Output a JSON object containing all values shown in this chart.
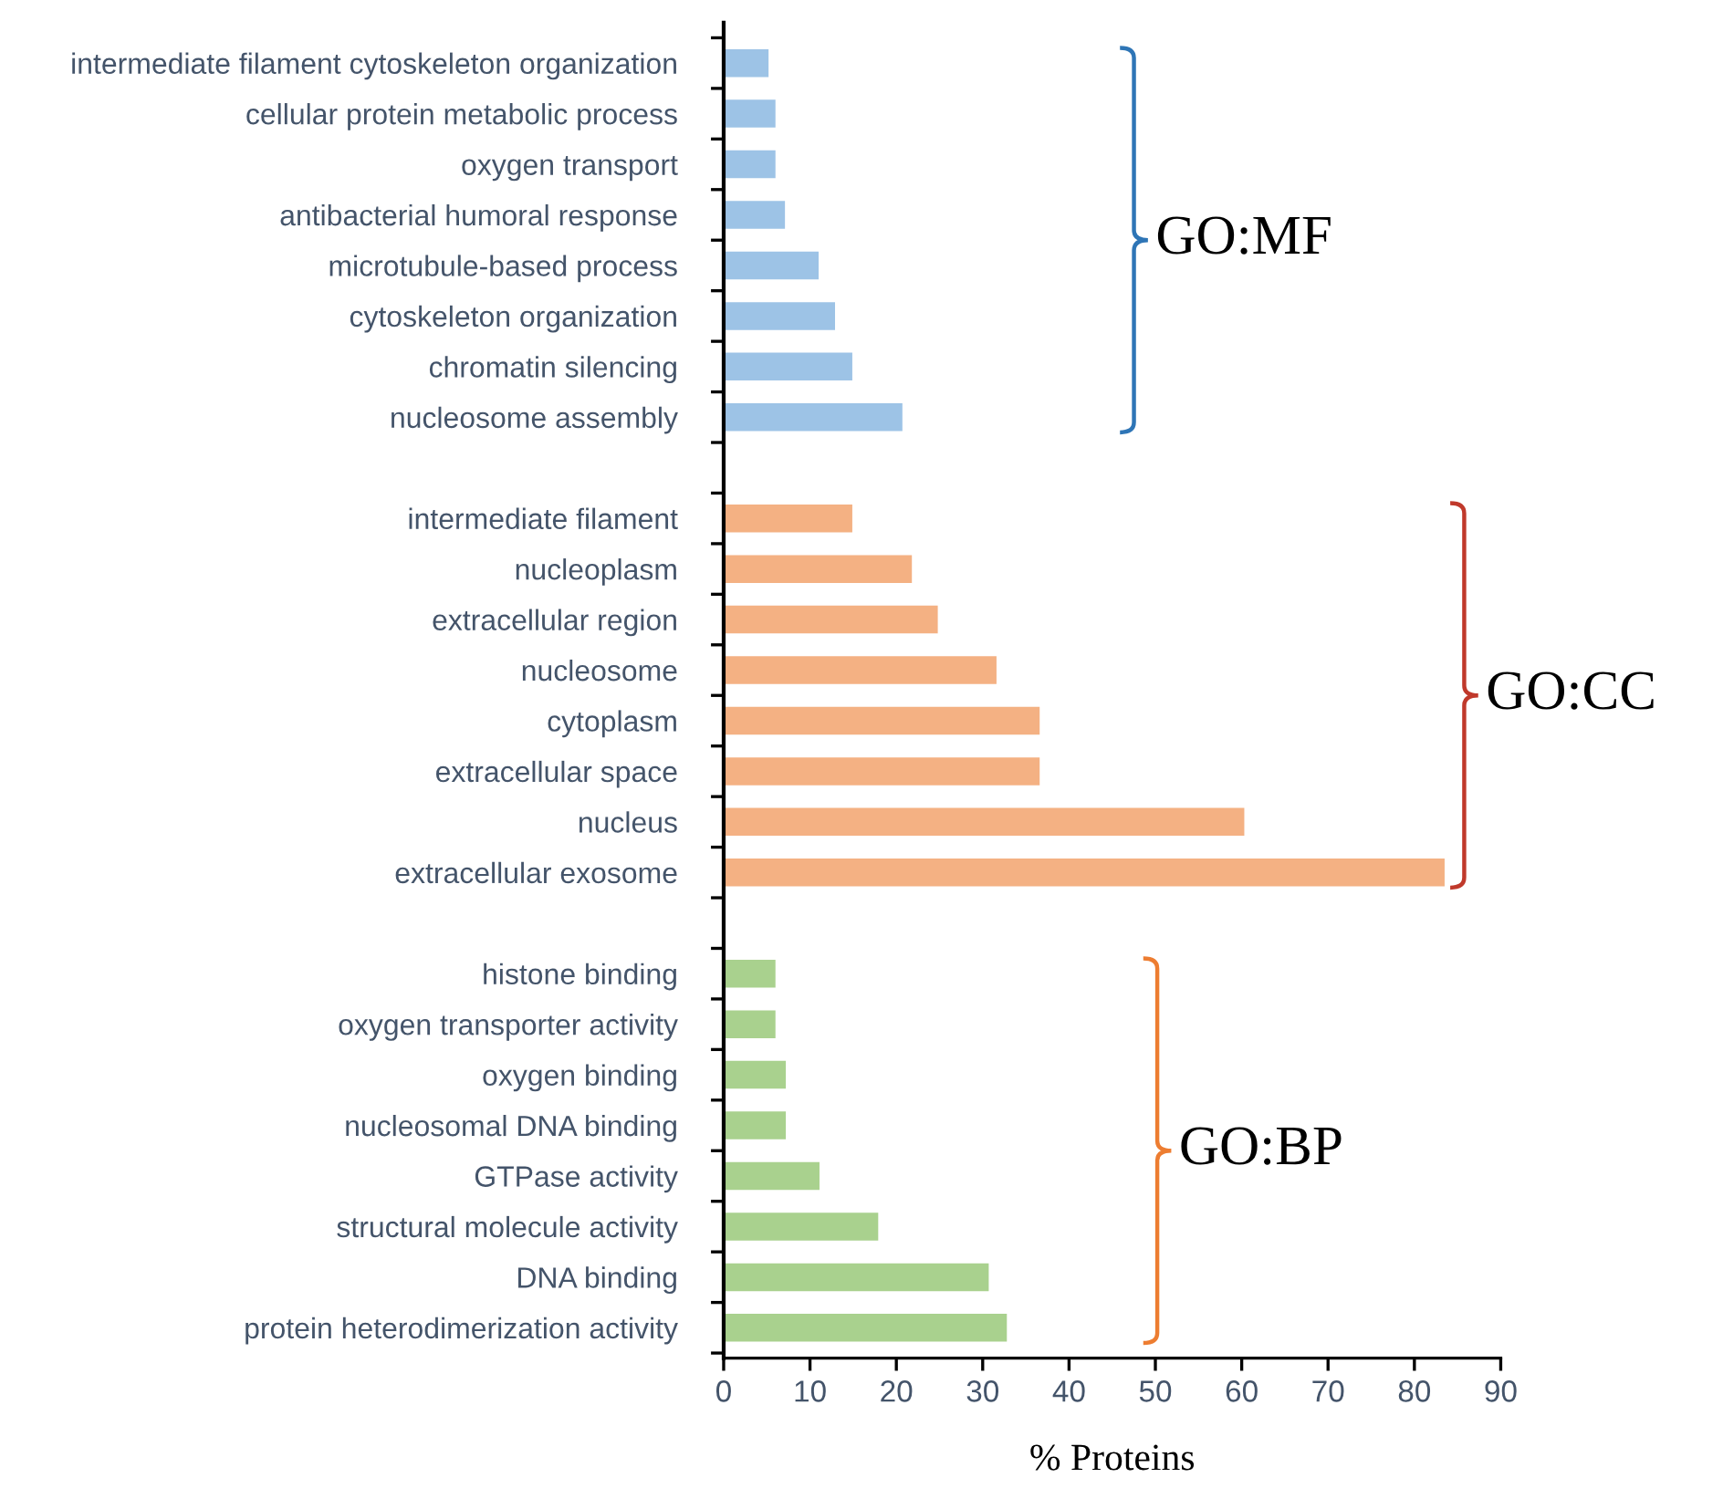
{
  "chart_data": {
    "type": "bar",
    "orientation": "horizontal",
    "xlabel": "% Proteins",
    "categories": [
      "intermediate filament cytoskeleton organization",
      "cellular protein metabolic process",
      "oxygen transport",
      "antibacterial humoral response",
      "microtubule-based process",
      "cytoskeleton organization",
      "chromatin silencing",
      "nucleosome assembly",
      null,
      "intermediate filament",
      "nucleoplasm",
      "extracellular region",
      "nucleosome",
      "cytoplasm",
      "extracellular space",
      "nucleus",
      "extracellular exosome",
      null,
      "histone binding",
      "oxygen transporter activity",
      "oxygen binding",
      "nucleosomal DNA binding",
      "GTPase activity",
      "structural molecule activity",
      "DNA binding",
      "protein heterodimerization activity"
    ],
    "series": [
      {
        "color": "#9dc3e6",
        "values": [
          5.2,
          6.0,
          6.0,
          7.1,
          11.0,
          12.9,
          14.9,
          20.7,
          null,
          null,
          null,
          null,
          null,
          null,
          null,
          null,
          null,
          null,
          null,
          null,
          null,
          null,
          null,
          null,
          null,
          null
        ]
      },
      {
        "color": "#f4b183",
        "values": [
          null,
          null,
          null,
          null,
          null,
          null,
          null,
          null,
          null,
          14.9,
          21.8,
          24.8,
          31.6,
          36.6,
          36.6,
          60.3,
          83.5,
          null,
          null,
          null,
          null,
          null,
          null,
          null,
          null,
          null
        ]
      },
      {
        "color": "#a9d18e",
        "values": [
          null,
          null,
          null,
          null,
          null,
          null,
          null,
          null,
          null,
          null,
          null,
          null,
          null,
          null,
          null,
          null,
          null,
          null,
          6.0,
          6.0,
          7.2,
          7.2,
          11.1,
          17.9,
          30.7,
          32.8
        ]
      }
    ],
    "annotations": [
      "GO:MF",
      "GO:CC",
      "GO:BP"
    ],
    "xlim": [
      0,
      90
    ],
    "xticks": [
      0,
      10,
      20,
      30,
      40,
      50,
      60,
      70,
      80,
      90
    ],
    "grid": false,
    "legend": false
  }
}
